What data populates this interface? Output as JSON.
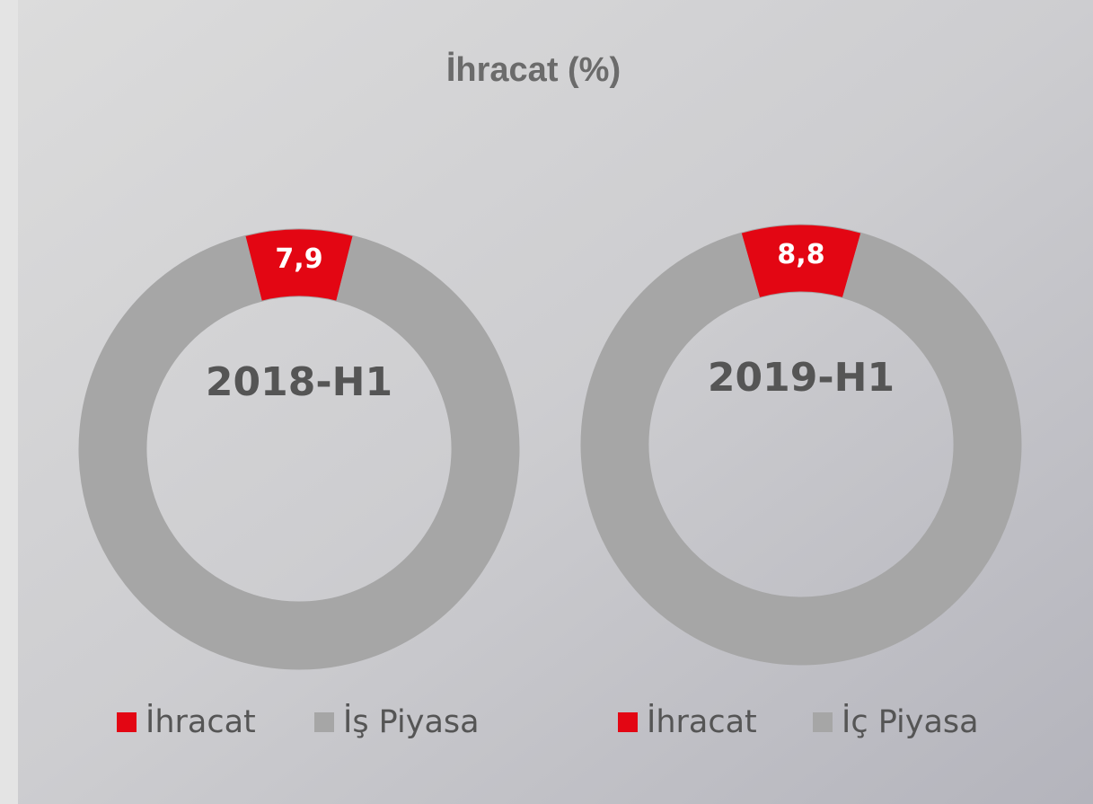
{
  "title": "İhracat (%)",
  "chart_data": [
    {
      "type": "donut",
      "center_label": "2018-H1",
      "categories": [
        "İhracat",
        "İş Piyasa"
      ],
      "values": [
        7.9,
        92.1
      ],
      "value_labels": [
        "7,9",
        null
      ],
      "colors": [
        "#e30613",
        "#a6a6a6"
      ],
      "legend": "bottom"
    },
    {
      "type": "donut",
      "center_label": "2019-H1",
      "categories": [
        "İhracat",
        "İç Piyasa"
      ],
      "values": [
        8.8,
        91.2
      ],
      "value_labels": [
        "8,8",
        null
      ],
      "colors": [
        "#e30613",
        "#a6a6a6"
      ],
      "legend": "bottom"
    }
  ]
}
